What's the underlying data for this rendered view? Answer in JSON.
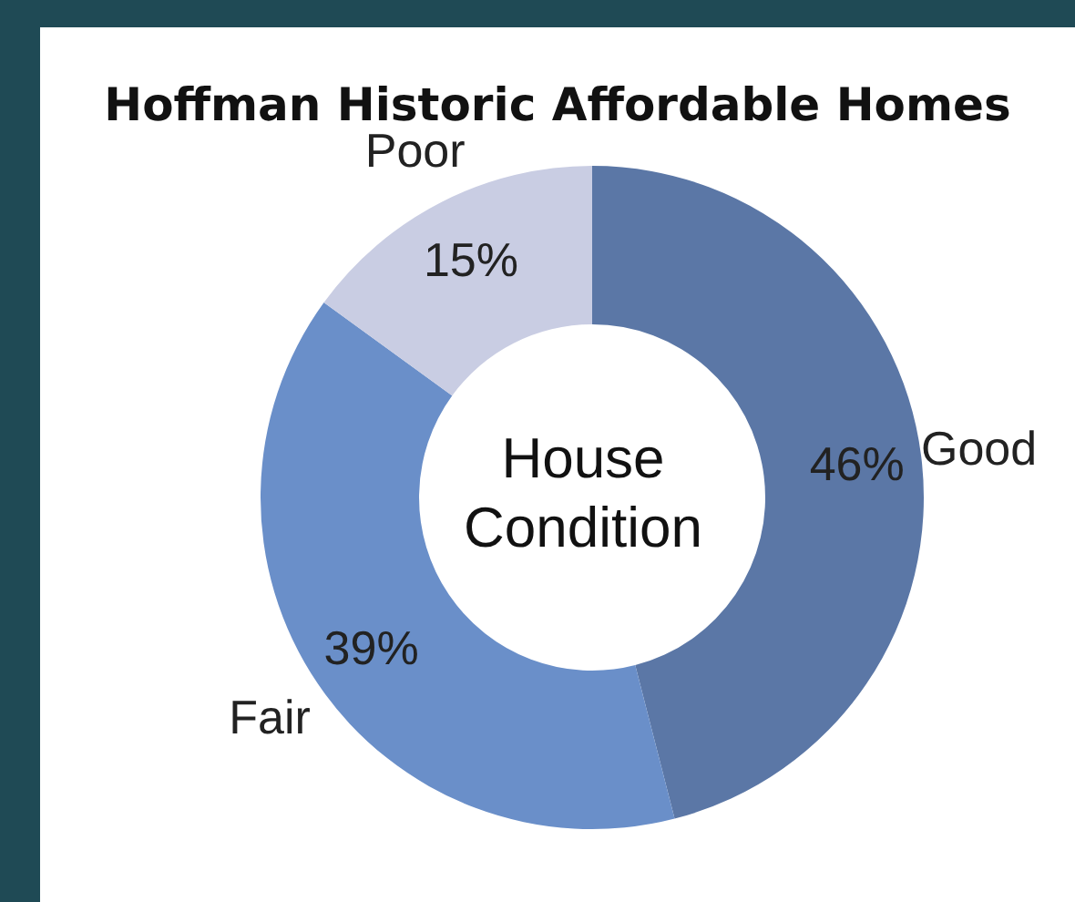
{
  "chart_data": {
    "type": "donut",
    "title": "Hoffman Historic Affordable Homes",
    "categories": [
      "Good",
      "Fair",
      "Poor"
    ],
    "values": [
      46,
      39,
      15
    ],
    "value_labels": [
      "46%",
      "39%",
      "15%"
    ],
    "colors": [
      "#5b77a6",
      "#6a8fc9",
      "#c9cde3"
    ],
    "annotations": [
      "House Condition"
    ],
    "legend": false
  }
}
